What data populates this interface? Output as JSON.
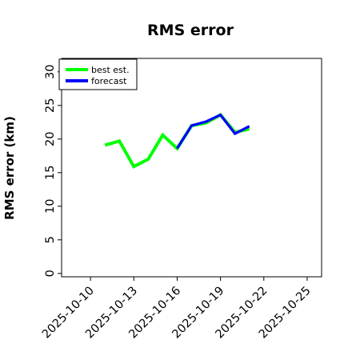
{
  "chart_data": {
    "type": "line",
    "title": "RMS error",
    "xlabel": "",
    "ylabel": "RMS error (km)",
    "xlim": [
      "2025-10-08",
      "2025-10-26"
    ],
    "ylim": [
      -0.5,
      32
    ],
    "x_ticks": [
      "2025-10-10",
      "2025-10-13",
      "2025-10-16",
      "2025-10-19",
      "2025-10-22",
      "2025-10-25"
    ],
    "y_ticks": [
      0,
      5,
      10,
      15,
      20,
      25,
      30
    ],
    "highlight_tick": "2025-10-16",
    "highlight_color": "#1f8a1f",
    "grid": false,
    "legend_position": "top-left",
    "series": [
      {
        "name": "best est.",
        "color": "#00ff00",
        "x": [
          "2025-10-11",
          "2025-10-12",
          "2025-10-13",
          "2025-10-14",
          "2025-10-15",
          "2025-10-16",
          "2025-10-17",
          "2025-10-18",
          "2025-10-19",
          "2025-10-20",
          "2025-10-21"
        ],
        "values": [
          19.1,
          19.7,
          15.9,
          17.0,
          20.6,
          18.6,
          22.0,
          22.4,
          23.6,
          21.0,
          21.5
        ]
      },
      {
        "name": "forecast",
        "color": "#0000ff",
        "x": [
          "2025-10-16",
          "2025-10-17",
          "2025-10-18",
          "2025-10-19",
          "2025-10-20",
          "2025-10-21"
        ],
        "values": [
          18.6,
          22.0,
          22.6,
          23.6,
          20.8,
          21.9
        ]
      }
    ]
  }
}
